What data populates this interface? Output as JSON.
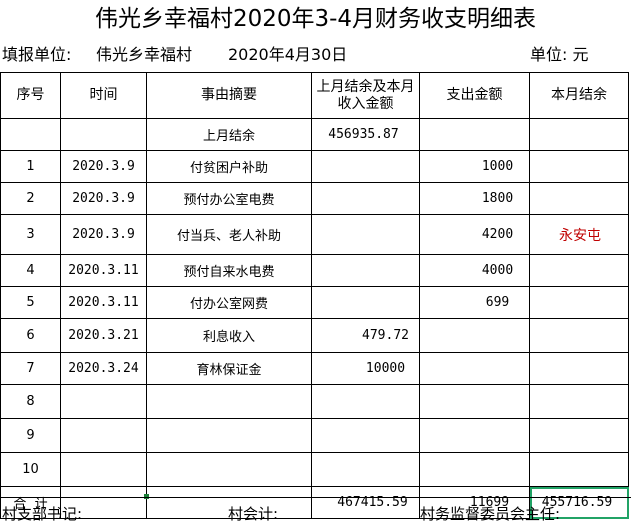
{
  "title": "伟光乡幸福村2020年3-4月财务收支明细表",
  "header": {
    "unit_label": "填报单位:",
    "unit_name": "伟光乡幸福村",
    "report_date": "2020年4月30日",
    "currency_label": "单位: 元"
  },
  "columns": [
    "序号",
    "时间",
    "事由摘要",
    "上月结余及本月收入金额",
    "支出金额",
    "本月结余"
  ],
  "rows": [
    {
      "no": "",
      "date": "",
      "desc": "上月结余",
      "income": "456935.87",
      "expense": "",
      "balance": ""
    },
    {
      "no": "1",
      "date": "2020.3.9",
      "desc": "付贫困户补助",
      "income": "",
      "expense": "1000",
      "balance": ""
    },
    {
      "no": "2",
      "date": "2020.3.9",
      "desc": "预付办公室电费",
      "income": "",
      "expense": "1800",
      "balance": ""
    },
    {
      "no": "3",
      "date": "2020.3.9",
      "desc": "付当兵、老人补助",
      "income": "",
      "expense": "4200",
      "balance": "永安屯"
    },
    {
      "no": "4",
      "date": "2020.3.11",
      "desc": "预付自来水电费",
      "income": "",
      "expense": "4000",
      "balance": ""
    },
    {
      "no": "5",
      "date": "2020.3.11",
      "desc": "付办公室网费",
      "income": "",
      "expense": "699",
      "balance": ""
    },
    {
      "no": "6",
      "date": "2020.3.21",
      "desc": "利息收入",
      "income": "479.72",
      "expense": "",
      "balance": ""
    },
    {
      "no": "7",
      "date": "2020.3.24",
      "desc": "育林保证金",
      "income": "10000",
      "expense": "",
      "balance": ""
    },
    {
      "no": "8",
      "date": "",
      "desc": "",
      "income": "",
      "expense": "",
      "balance": ""
    },
    {
      "no": "9",
      "date": "",
      "desc": "",
      "income": "",
      "expense": "",
      "balance": ""
    },
    {
      "no": "10",
      "date": "",
      "desc": "",
      "income": "",
      "expense": "",
      "balance": ""
    }
  ],
  "totals": {
    "label": "合  计",
    "income": "467415.59",
    "expense": "11699",
    "balance": "455716.59"
  },
  "footer": {
    "secretary": "村支部书记:",
    "accountant": "村会计:",
    "supervisor": "村务监督委员会主任:"
  },
  "colors": {
    "note_text": "#c00000",
    "selection_border": "#21a366"
  }
}
